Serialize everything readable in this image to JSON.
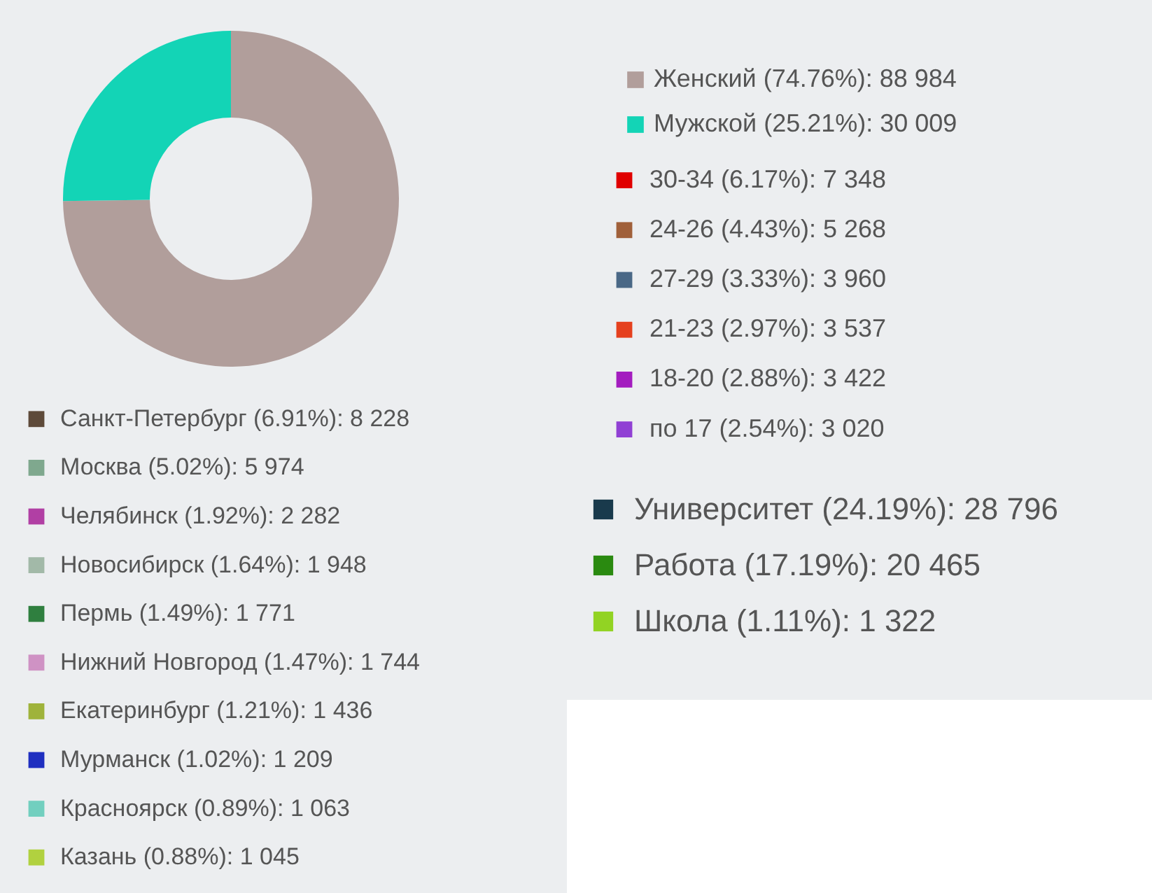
{
  "chart_data": [
    {
      "type": "donut",
      "categories": [
        "Женский (74.76%): 88 984",
        "Мужской (25.21%): 30 009"
      ],
      "values": [
        88984,
        30009
      ],
      "colors": [
        "#b19e9b",
        "#13d4b6"
      ],
      "legend": "right"
    },
    {
      "type": "other",
      "categories": [
        "30-34 (6.17%): 7 348",
        "24-26 (4.43%): 5 268",
        "27-29 (3.33%): 3 960",
        "21-23 (2.97%): 3 537",
        "18-20 (2.88%): 3 422",
        "по 17 (2.54%): 3 020"
      ],
      "colors": [
        "#e00000",
        "#a0603a",
        "#4a6886",
        "#e5401e",
        "#a31cbf",
        "#9040d4"
      ]
    },
    {
      "type": "other",
      "categories": [
        "Университет (24.19%): 28 796",
        "Работа (17.19%): 20 465",
        "Школа (1.11%): 1 322"
      ],
      "colors": [
        "#193a4c",
        "#2a8a10",
        "#92d323"
      ]
    },
    {
      "type": "other",
      "categories": [
        "Санкт-Петербург (6.91%): 8 228",
        "Москва (5.02%): 5 974",
        "Челябинск (1.92%): 2 282",
        "Новосибирск (1.64%): 1 948",
        "Пермь (1.49%): 1 771",
        "Нижний Новгород (1.47%): 1 744",
        "Екатеринбург (1.21%): 1 436",
        "Мурманск (1.02%): 1 209",
        "Красноярск (0.89%): 1 063",
        "Казань (0.88%): 1 045"
      ],
      "colors": [
        "#5e4a3a",
        "#7fa88e",
        "#b13fa4",
        "#a2b9a8",
        "#2f7f3f",
        "#cf92c4",
        "#9fb33b",
        "#1f2fc0",
        "#72cfbf",
        "#b1d13f"
      ]
    }
  ]
}
